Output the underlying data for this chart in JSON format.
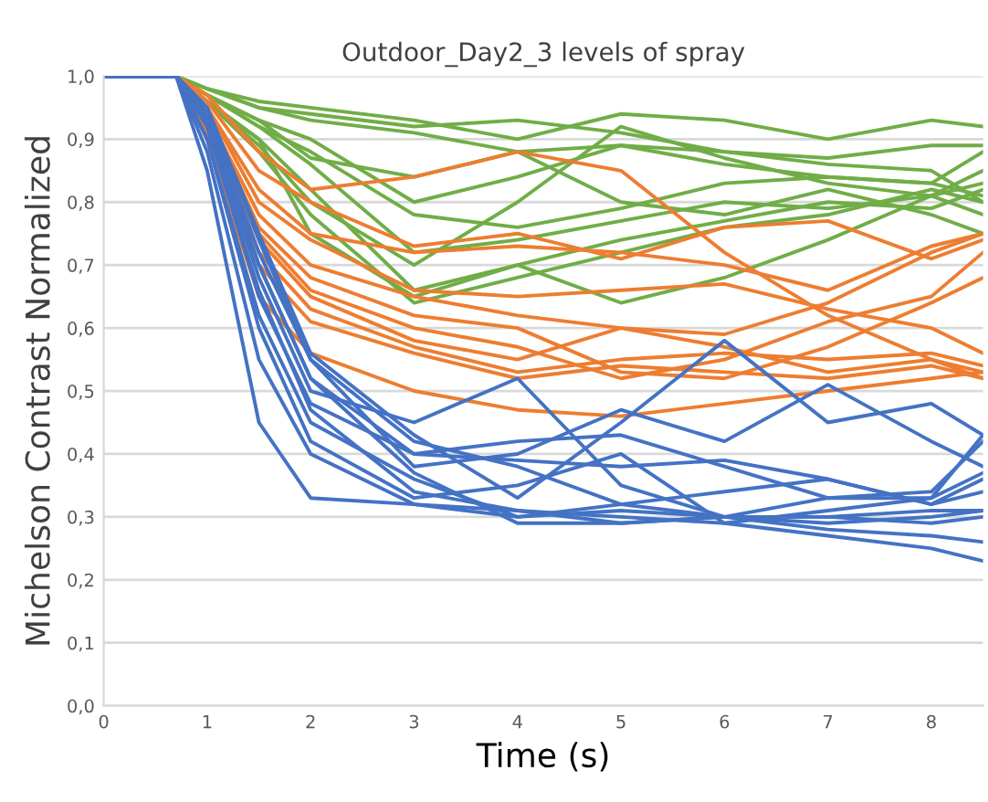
{
  "chart_data": {
    "type": "line",
    "title": "Outdoor_Day2_3 levels of spray",
    "xlabel": "Time (s)",
    "ylabel": "Michelson Contrast Normalized",
    "x": [
      0,
      0.7,
      1,
      1.5,
      2,
      3,
      4,
      5,
      6,
      7,
      8,
      8.5
    ],
    "xlim": [
      0,
      8.5
    ],
    "xticks": [
      0,
      1,
      2,
      3,
      4,
      5,
      6,
      7,
      8
    ],
    "ylim": [
      0,
      1.0
    ],
    "yticks": [
      {
        "value": 0,
        "label": "0,0"
      },
      {
        "value": 0.1,
        "label": "0,1"
      },
      {
        "value": 0.2,
        "label": "0,2"
      },
      {
        "value": 0.3,
        "label": "0,3"
      },
      {
        "value": 0.4,
        "label": "0,4"
      },
      {
        "value": 0.5,
        "label": "0,5"
      },
      {
        "value": 0.6,
        "label": "0,6"
      },
      {
        "value": 0.7,
        "label": "0,7"
      },
      {
        "value": 0.8,
        "label": "0,8"
      },
      {
        "value": 0.9,
        "label": "0,9"
      },
      {
        "value": 1.0,
        "label": "1,0"
      }
    ],
    "grid": "y",
    "series": [
      {
        "color": "#70ad47",
        "values": [
          1,
          1,
          0.98,
          0.96,
          0.95,
          0.93,
          0.9,
          0.94,
          0.93,
          0.9,
          0.93,
          0.92
        ]
      },
      {
        "color": "#70ad47",
        "values": [
          1,
          1,
          0.98,
          0.95,
          0.94,
          0.92,
          0.93,
          0.91,
          0.88,
          0.87,
          0.89,
          0.89
        ]
      },
      {
        "color": "#70ad47",
        "values": [
          1,
          1,
          0.98,
          0.95,
          0.93,
          0.91,
          0.88,
          0.89,
          0.86,
          0.84,
          0.83,
          0.81
        ]
      },
      {
        "color": "#70ad47",
        "values": [
          1,
          1,
          0.97,
          0.93,
          0.9,
          0.8,
          0.84,
          0.89,
          0.88,
          0.86,
          0.85,
          0.8
        ]
      },
      {
        "color": "#70ad47",
        "values": [
          1,
          1,
          0.97,
          0.92,
          0.88,
          0.78,
          0.76,
          0.79,
          0.83,
          0.84,
          0.83,
          0.88
        ]
      },
      {
        "color": "#70ad47",
        "values": [
          1,
          1,
          0.97,
          0.92,
          0.86,
          0.72,
          0.74,
          0.77,
          0.8,
          0.79,
          0.81,
          0.85
        ]
      },
      {
        "color": "#70ad47",
        "values": [
          1,
          1,
          0.96,
          0.9,
          0.82,
          0.66,
          0.7,
          0.74,
          0.77,
          0.8,
          0.79,
          0.82
        ]
      },
      {
        "color": "#70ad47",
        "values": [
          1,
          1,
          0.96,
          0.88,
          0.78,
          0.64,
          0.68,
          0.72,
          0.76,
          0.78,
          0.82,
          0.8
        ]
      },
      {
        "color": "#70ad47",
        "values": [
          1,
          1,
          0.96,
          0.9,
          0.75,
          0.65,
          0.7,
          0.64,
          0.68,
          0.74,
          0.81,
          0.83
        ]
      },
      {
        "color": "#70ad47",
        "values": [
          1,
          1,
          0.97,
          0.93,
          0.87,
          0.84,
          0.88,
          0.8,
          0.78,
          0.82,
          0.78,
          0.75
        ]
      },
      {
        "color": "#70ad47",
        "values": [
          1,
          1,
          0.96,
          0.89,
          0.8,
          0.7,
          0.8,
          0.92,
          0.87,
          0.83,
          0.81,
          0.78
        ]
      },
      {
        "color": "#ed7d31",
        "values": [
          1,
          1,
          0.97,
          0.88,
          0.82,
          0.84,
          0.88,
          0.85,
          0.72,
          0.62,
          0.55,
          0.52
        ]
      },
      {
        "color": "#ed7d31",
        "values": [
          1,
          1,
          0.96,
          0.85,
          0.8,
          0.73,
          0.75,
          0.71,
          0.76,
          0.77,
          0.71,
          0.74
        ]
      },
      {
        "color": "#ed7d31",
        "values": [
          1,
          1,
          0.95,
          0.82,
          0.75,
          0.72,
          0.73,
          0.72,
          0.7,
          0.66,
          0.73,
          0.75
        ]
      },
      {
        "color": "#ed7d31",
        "values": [
          1,
          1,
          0.95,
          0.8,
          0.74,
          0.66,
          0.65,
          0.66,
          0.67,
          0.63,
          0.6,
          0.56
        ]
      },
      {
        "color": "#ed7d31",
        "values": [
          1,
          1,
          0.94,
          0.78,
          0.7,
          0.65,
          0.62,
          0.6,
          0.59,
          0.64,
          0.72,
          0.75
        ]
      },
      {
        "color": "#ed7d31",
        "values": [
          1,
          1,
          0.93,
          0.75,
          0.66,
          0.6,
          0.57,
          0.52,
          0.55,
          0.61,
          0.65,
          0.72
        ]
      },
      {
        "color": "#ed7d31",
        "values": [
          1,
          1,
          0.93,
          0.74,
          0.65,
          0.58,
          0.55,
          0.6,
          0.57,
          0.53,
          0.55,
          0.53
        ]
      },
      {
        "color": "#ed7d31",
        "values": [
          1,
          1,
          0.92,
          0.72,
          0.63,
          0.57,
          0.53,
          0.55,
          0.56,
          0.55,
          0.56,
          0.54
        ]
      },
      {
        "color": "#ed7d31",
        "values": [
          1,
          1,
          0.91,
          0.7,
          0.61,
          0.56,
          0.52,
          0.54,
          0.53,
          0.52,
          0.54,
          0.52
        ]
      },
      {
        "color": "#ed7d31",
        "values": [
          1,
          1,
          0.9,
          0.65,
          0.56,
          0.5,
          0.47,
          0.46,
          0.48,
          0.5,
          0.52,
          0.53
        ]
      },
      {
        "color": "#ed7d31",
        "values": [
          1,
          1,
          0.94,
          0.76,
          0.68,
          0.62,
          0.6,
          0.53,
          0.52,
          0.57,
          0.64,
          0.68
        ]
      },
      {
        "color": "#4472c4",
        "values": [
          1,
          1,
          0.85,
          0.45,
          0.33,
          0.32,
          0.31,
          0.3,
          0.29,
          0.27,
          0.25,
          0.23
        ]
      },
      {
        "color": "#4472c4",
        "values": [
          1,
          1,
          0.88,
          0.55,
          0.4,
          0.32,
          0.3,
          0.31,
          0.3,
          0.28,
          0.27,
          0.26
        ]
      },
      {
        "color": "#4472c4",
        "values": [
          1,
          1,
          0.9,
          0.6,
          0.42,
          0.33,
          0.35,
          0.4,
          0.29,
          0.31,
          0.33,
          0.43
        ]
      },
      {
        "color": "#4472c4",
        "values": [
          1,
          1,
          0.9,
          0.62,
          0.45,
          0.36,
          0.3,
          0.32,
          0.34,
          0.36,
          0.32,
          0.36
        ]
      },
      {
        "color": "#4472c4",
        "values": [
          1,
          1,
          0.92,
          0.65,
          0.48,
          0.4,
          0.42,
          0.43,
          0.38,
          0.33,
          0.34,
          0.42
        ]
      },
      {
        "color": "#4472c4",
        "values": [
          1,
          1,
          0.93,
          0.7,
          0.52,
          0.4,
          0.39,
          0.38,
          0.39,
          0.36,
          0.32,
          0.34
        ]
      },
      {
        "color": "#4472c4",
        "values": [
          1,
          1,
          0.93,
          0.68,
          0.5,
          0.45,
          0.52,
          0.35,
          0.3,
          0.3,
          0.31,
          0.31
        ]
      },
      {
        "color": "#4472c4",
        "values": [
          1,
          1,
          0.94,
          0.72,
          0.55,
          0.42,
          0.38,
          0.32,
          0.3,
          0.33,
          0.33,
          0.37
        ]
      },
      {
        "color": "#4472c4",
        "values": [
          1,
          1,
          0.95,
          0.75,
          0.56,
          0.43,
          0.33,
          0.45,
          0.58,
          0.45,
          0.48,
          0.43
        ]
      },
      {
        "color": "#4472c4",
        "values": [
          1,
          1,
          0.95,
          0.74,
          0.55,
          0.38,
          0.4,
          0.47,
          0.42,
          0.51,
          0.42,
          0.38
        ]
      },
      {
        "color": "#4472c4",
        "values": [
          1,
          1,
          0.94,
          0.7,
          0.52,
          0.37,
          0.29,
          0.29,
          0.3,
          0.3,
          0.29,
          0.3
        ]
      },
      {
        "color": "#4472c4",
        "values": [
          1,
          1,
          0.92,
          0.66,
          0.47,
          0.34,
          0.31,
          0.29,
          0.3,
          0.29,
          0.3,
          0.31
        ]
      }
    ]
  }
}
